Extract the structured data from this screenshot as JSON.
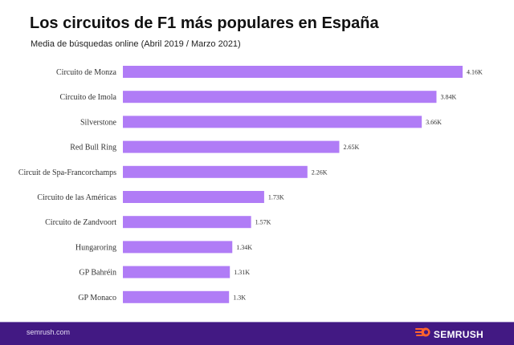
{
  "header": {
    "title": "Los circuitos de F1 más populares en España",
    "subtitle": "Media de búsquedas online (Abril 2019 / Marzo 2021)"
  },
  "chart_data": {
    "type": "bar",
    "orientation": "horizontal",
    "title": "Los circuitos de F1 más populares en España",
    "subtitle": "Media de búsquedas online (Abril 2019 / Marzo 2021)",
    "xlabel": "",
    "ylabel": "",
    "categories": [
      "Circuito de Monza",
      "Circuito de Imola",
      "Silverstone",
      "Red Bull Ring",
      "Circuit de Spa-Francorchamps",
      "Circuito de las Américas",
      "Circuito de Zandvoort",
      "Hungaroring",
      "GP Bahréin",
      "GP Monaco"
    ],
    "values": [
      4160,
      3840,
      3660,
      2650,
      2260,
      1730,
      1570,
      1340,
      1310,
      1300
    ],
    "value_labels": [
      "4.16K",
      "3.84K",
      "3.66K",
      "2.65K",
      "2.26K",
      "1.73K",
      "1.57K",
      "1.34K",
      "1.31K",
      "1.3K"
    ],
    "xlim": [
      0,
      4160
    ],
    "grid": false,
    "legend": "none",
    "bar_color": "#B07CF6"
  },
  "footer": {
    "site": "semrush.com",
    "brand": "SEMRUSH",
    "background": "#421983",
    "logo_color": "#FF642D"
  }
}
